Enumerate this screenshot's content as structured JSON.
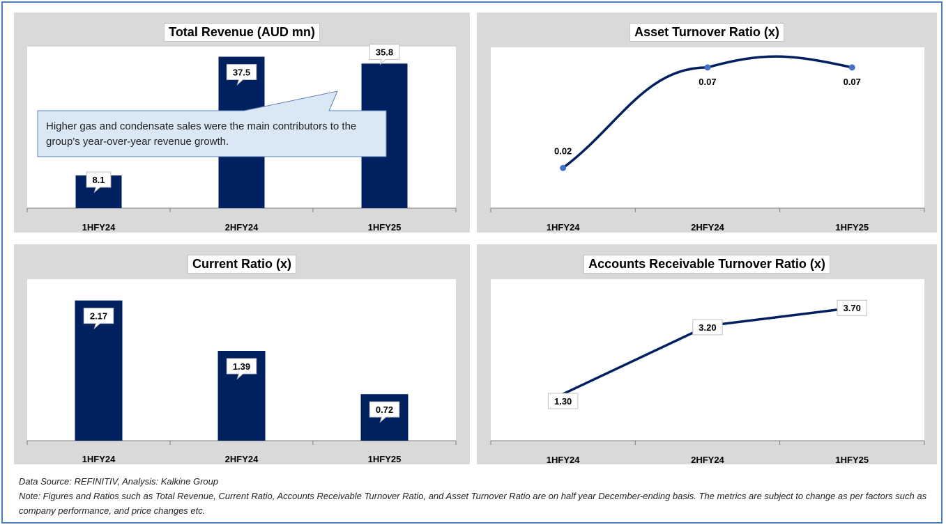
{
  "colors": {
    "bar": "#002060",
    "line": "#002060",
    "marker": "#4472c4",
    "panel": "#d9d9d9",
    "callout_fill": "#dae8f5",
    "callout_border": "#5b7fb5"
  },
  "chart_data": [
    {
      "id": "revenue",
      "type": "bar",
      "title": "Total Revenue (AUD mn)",
      "categories": [
        "1HFY24",
        "2HFY24",
        "1HFY25"
      ],
      "values": [
        8.1,
        37.5,
        35.8
      ],
      "labels": [
        "8.1",
        "37.5",
        "35.8"
      ],
      "ylim": [
        0,
        40
      ],
      "annotation": "Higher gas and condensate sales were the main contributors to the group's year-over-year revenue growth."
    },
    {
      "id": "asset_turnover",
      "type": "line",
      "title": "Asset Turnover Ratio (x)",
      "categories": [
        "1HFY24",
        "2HFY24",
        "1HFY25"
      ],
      "values": [
        0.02,
        0.07,
        0.07
      ],
      "labels": [
        "0.02",
        "0.07",
        "0.07"
      ],
      "ylim": [
        0,
        0.08
      ]
    },
    {
      "id": "current_ratio",
      "type": "bar",
      "title": "Current Ratio (x)",
      "categories": [
        "1HFY24",
        "2HFY24",
        "1HFY25"
      ],
      "values": [
        2.17,
        1.39,
        0.72
      ],
      "labels": [
        "2.17",
        "1.39",
        "0.72"
      ],
      "ylim": [
        0,
        2.5
      ]
    },
    {
      "id": "ar_turnover",
      "type": "line",
      "title": "Accounts Receivable Turnover Ratio (x)",
      "categories": [
        "1HFY24",
        "2HFY24",
        "1HFY25"
      ],
      "values": [
        1.3,
        3.2,
        3.7
      ],
      "labels": [
        "1.30",
        "3.20",
        "3.70"
      ],
      "ylim": [
        0,
        4.5
      ]
    }
  ],
  "footer": {
    "source": "Data Source: REFINITIV, Analysis: Kalkine Group",
    "note": "Note: Figures and Ratios such as Total Revenue, Current Ratio, Accounts Receivable Turnover Ratio, and Asset Turnover Ratio are on half year December-ending basis. The metrics are subject to change as per factors such as company performance, and price changes etc."
  }
}
